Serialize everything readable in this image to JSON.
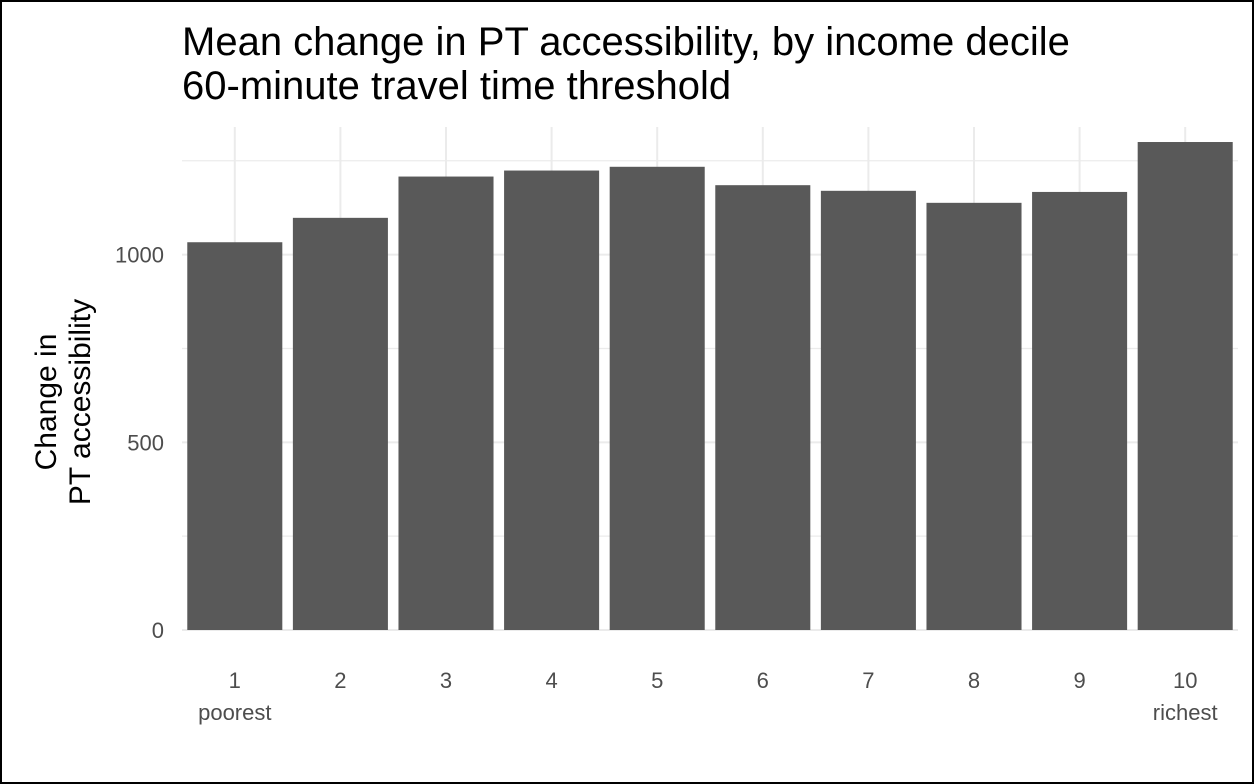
{
  "chart_data": {
    "type": "bar",
    "title": "Mean change in PT accessibility, by income decile",
    "subtitle": "60-minute travel time threshold",
    "xlabel": "",
    "ylabel": [
      "Change in",
      "PT accessibility"
    ],
    "categories": [
      "1",
      "2",
      "3",
      "4",
      "5",
      "6",
      "7",
      "8",
      "9",
      "10"
    ],
    "category_sublabels": [
      "poorest",
      "",
      "",
      "",
      "",
      "",
      "",
      "",
      "",
      "richest"
    ],
    "values": [
      1033,
      1098,
      1208,
      1224,
      1234,
      1185,
      1170,
      1138,
      1167,
      1300
    ],
    "ylim": [
      0,
      1340
    ],
    "yticks": [
      0,
      500,
      1000
    ],
    "ytick_labels": [
      "0",
      "500",
      "1000"
    ],
    "grid": true,
    "bar_color": "#595959",
    "grid_color": "#ebebeb",
    "tick_color": "#4d4d4d"
  }
}
